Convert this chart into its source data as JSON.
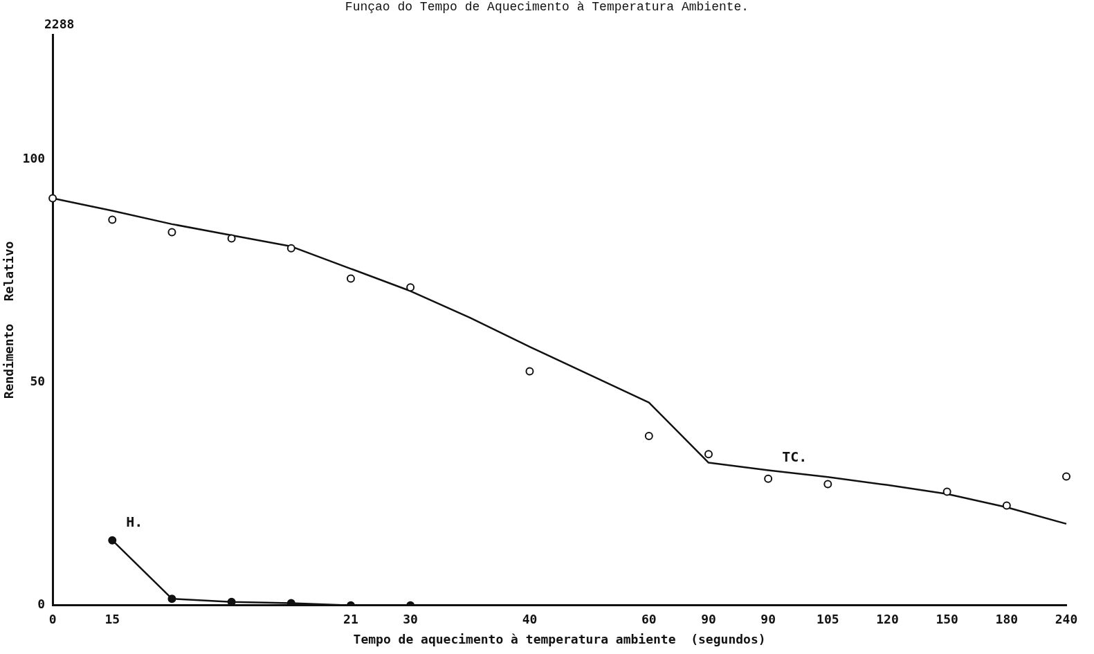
{
  "chart_data": {
    "type": "line",
    "title": "Funçao do Tempo de Aquecimento à Temperatura Ambiente.",
    "xlabel": "Tempo de aquecimento à temperatura ambiente  (segundos)",
    "ylabel": "Rendimento   Relativo",
    "categories": [
      "0",
      "15",
      null,
      null,
      null,
      "21",
      "30",
      null,
      "40",
      null,
      "60",
      "90",
      "90",
      "105",
      "120",
      "150",
      "180",
      "240"
    ],
    "series": [
      {
        "name": "TC.",
        "type": "scatter",
        "color": "#111111",
        "marker": "circle",
        "values": [
          91.3,
          86.5,
          83.7,
          82.3,
          80.1,
          73.3,
          71.3,
          null,
          52.5,
          null,
          38,
          33.9,
          28.4,
          27.2,
          null,
          25.5,
          22.4,
          28.9
        ]
      },
      {
        "type": "line",
        "color": "#111111",
        "values": [
          91.3,
          88.5,
          85.5,
          83,
          80.5,
          75.5,
          70.5,
          64.5,
          58,
          null,
          45.5,
          32,
          30.3,
          28.8,
          27,
          25,
          22,
          18.3
        ]
      },
      {
        "name": "H.",
        "type": "scatter",
        "color": "#111111",
        "marker": "circle",
        "values": [
          null,
          14.6,
          1.5,
          0.8,
          0.5,
          0,
          0,
          null,
          null,
          null,
          null,
          null,
          null,
          null,
          null,
          null,
          null,
          null
        ]
      },
      {
        "type": "line",
        "color": "#111111",
        "values": [
          null,
          14.6,
          1.5,
          0.8,
          0.5,
          0,
          0,
          null,
          null,
          null,
          null,
          null,
          null,
          null,
          null,
          null,
          null,
          null
        ]
      }
    ],
    "ylim": [
      0,
      128
    ],
    "yticks": [
      0,
      50,
      100
    ],
    "annotations": [
      "2288"
    ],
    "grid": false,
    "legend": false
  }
}
